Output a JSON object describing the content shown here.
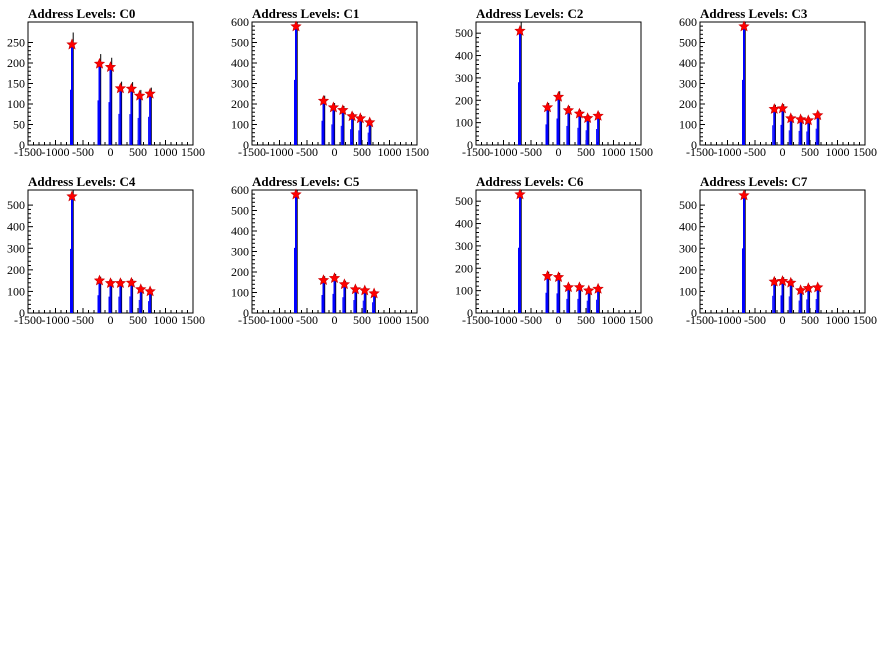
{
  "chart_data": [
    {
      "type": "histogram",
      "title": "Address Levels: C0",
      "xlim": [
        -1500,
        1500
      ],
      "ylim": [
        0,
        300
      ],
      "xticks": [
        -1500,
        -1000,
        -500,
        0,
        500,
        1000,
        1500
      ],
      "xtick_labels": [
        "-1500",
        "-1000",
        "-500",
        "0",
        "500",
        "1000",
        "1500"
      ],
      "yticks": [
        0,
        50,
        100,
        150,
        200,
        250
      ],
      "ytick_labels": [
        "0",
        "50",
        "100",
        "150",
        "200",
        "250"
      ],
      "peaks": [
        {
          "x": -700,
          "y": 245
        },
        {
          "x": -200,
          "y": 198
        },
        {
          "x": 0,
          "y": 190
        },
        {
          "x": 180,
          "y": 138
        },
        {
          "x": 380,
          "y": 137
        },
        {
          "x": 530,
          "y": 120
        },
        {
          "x": 720,
          "y": 125
        }
      ]
    },
    {
      "type": "histogram",
      "title": "Address Levels: C1",
      "xlim": [
        -1500,
        1500
      ],
      "ylim": [
        0,
        600
      ],
      "xticks": [
        -1500,
        -1000,
        -500,
        0,
        500,
        1000,
        1500
      ],
      "xtick_labels": [
        "-1500",
        "-1000",
        "-500",
        "0",
        "500",
        "1000",
        "1500"
      ],
      "yticks": [
        0,
        100,
        200,
        300,
        400,
        500,
        600
      ],
      "ytick_labels": [
        "0",
        "100",
        "200",
        "300",
        "400",
        "500",
        "600"
      ],
      "peaks": [
        {
          "x": -700,
          "y": 578
        },
        {
          "x": -200,
          "y": 215
        },
        {
          "x": -20,
          "y": 183
        },
        {
          "x": 150,
          "y": 170
        },
        {
          "x": 320,
          "y": 140
        },
        {
          "x": 470,
          "y": 130
        },
        {
          "x": 640,
          "y": 110
        }
      ]
    },
    {
      "type": "histogram",
      "title": "Address Levels: C2",
      "xlim": [
        -1500,
        1500
      ],
      "ylim": [
        0,
        550
      ],
      "xticks": [
        -1500,
        -1000,
        -500,
        0,
        500,
        1000,
        1500
      ],
      "xtick_labels": [
        "-1500",
        "-1000",
        "-500",
        "0",
        "500",
        "1000",
        "1500"
      ],
      "yticks": [
        0,
        100,
        200,
        300,
        400,
        500
      ],
      "ytick_labels": [
        "0",
        "100",
        "200",
        "300",
        "400",
        "500"
      ],
      "peaks": [
        {
          "x": -700,
          "y": 510
        },
        {
          "x": -200,
          "y": 168
        },
        {
          "x": 0,
          "y": 215
        },
        {
          "x": 180,
          "y": 155
        },
        {
          "x": 380,
          "y": 140
        },
        {
          "x": 530,
          "y": 120
        },
        {
          "x": 720,
          "y": 130
        }
      ]
    },
    {
      "type": "histogram",
      "title": "Address Levels: C3",
      "xlim": [
        -1500,
        1500
      ],
      "ylim": [
        0,
        600
      ],
      "xticks": [
        -1500,
        -1000,
        -500,
        0,
        500,
        1000,
        1500
      ],
      "xtick_labels": [
        "-1500",
        "-1000",
        "-500",
        "0",
        "500",
        "1000",
        "1500"
      ],
      "yticks": [
        0,
        100,
        200,
        300,
        400,
        500,
        600
      ],
      "ytick_labels": [
        "0",
        "100",
        "200",
        "300",
        "400",
        "500",
        "600"
      ],
      "peaks": [
        {
          "x": -700,
          "y": 578
        },
        {
          "x": -150,
          "y": 175
        },
        {
          "x": 0,
          "y": 178
        },
        {
          "x": 150,
          "y": 130
        },
        {
          "x": 330,
          "y": 125
        },
        {
          "x": 470,
          "y": 120
        },
        {
          "x": 640,
          "y": 145
        }
      ]
    },
    {
      "type": "histogram",
      "title": "Address Levels: C4",
      "xlim": [
        -1500,
        1500
      ],
      "ylim": [
        0,
        570
      ],
      "xticks": [
        -1500,
        -1000,
        -500,
        0,
        500,
        1000,
        1500
      ],
      "xtick_labels": [
        "-1500",
        "-1000",
        "-500",
        "0",
        "500",
        "1000",
        "1500"
      ],
      "yticks": [
        0,
        100,
        200,
        300,
        400,
        500
      ],
      "ytick_labels": [
        "0",
        "100",
        "200",
        "300",
        "400",
        "500"
      ],
      "peaks": [
        {
          "x": -700,
          "y": 540
        },
        {
          "x": -200,
          "y": 150
        },
        {
          "x": 0,
          "y": 138
        },
        {
          "x": 180,
          "y": 138
        },
        {
          "x": 380,
          "y": 140
        },
        {
          "x": 550,
          "y": 110
        },
        {
          "x": 720,
          "y": 100
        }
      ]
    },
    {
      "type": "histogram",
      "title": "Address Levels: C5",
      "xlim": [
        -1500,
        1500
      ],
      "ylim": [
        0,
        600
      ],
      "xticks": [
        -1500,
        -1000,
        -500,
        0,
        500,
        1000,
        1500
      ],
      "xtick_labels": [
        "-1500",
        "-1000",
        "-500",
        "0",
        "500",
        "1000",
        "1500"
      ],
      "yticks": [
        0,
        100,
        200,
        300,
        400,
        500,
        600
      ],
      "ytick_labels": [
        "0",
        "100",
        "200",
        "300",
        "400",
        "500",
        "600"
      ],
      "peaks": [
        {
          "x": -700,
          "y": 578
        },
        {
          "x": -200,
          "y": 160
        },
        {
          "x": 0,
          "y": 170
        },
        {
          "x": 180,
          "y": 140
        },
        {
          "x": 380,
          "y": 115
        },
        {
          "x": 550,
          "y": 110
        },
        {
          "x": 720,
          "y": 95
        }
      ]
    },
    {
      "type": "histogram",
      "title": "Address Levels: C6",
      "xlim": [
        -1500,
        1500
      ],
      "ylim": [
        0,
        550
      ],
      "xticks": [
        -1500,
        -1000,
        -500,
        0,
        500,
        1000,
        1500
      ],
      "xtick_labels": [
        "-1500",
        "-1000",
        "-500",
        "0",
        "500",
        "1000",
        "1500"
      ],
      "yticks": [
        0,
        100,
        200,
        300,
        400,
        500
      ],
      "ytick_labels": [
        "0",
        "100",
        "200",
        "300",
        "400",
        "500"
      ],
      "peaks": [
        {
          "x": -700,
          "y": 530
        },
        {
          "x": -200,
          "y": 165
        },
        {
          "x": 0,
          "y": 160
        },
        {
          "x": 180,
          "y": 115
        },
        {
          "x": 380,
          "y": 115
        },
        {
          "x": 550,
          "y": 100
        },
        {
          "x": 720,
          "y": 108
        }
      ]
    },
    {
      "type": "histogram",
      "title": "Address Levels: C7",
      "xlim": [
        -1500,
        1500
      ],
      "ylim": [
        0,
        570
      ],
      "xticks": [
        -1500,
        -1000,
        -500,
        0,
        500,
        1000,
        1500
      ],
      "xtick_labels": [
        "-1500",
        "-1000",
        "-500",
        "0",
        "500",
        "1000",
        "1500"
      ],
      "yticks": [
        0,
        100,
        200,
        300,
        400,
        500
      ],
      "ytick_labels": [
        "0",
        "100",
        "200",
        "300",
        "400",
        "500"
      ],
      "peaks": [
        {
          "x": -700,
          "y": 545
        },
        {
          "x": -150,
          "y": 145
        },
        {
          "x": 0,
          "y": 148
        },
        {
          "x": 150,
          "y": 140
        },
        {
          "x": 330,
          "y": 105
        },
        {
          "x": 470,
          "y": 115
        },
        {
          "x": 640,
          "y": 118
        }
      ]
    }
  ],
  "colors": {
    "histogram": "#0000ff",
    "overflow": "#000000",
    "marker": "#ff0000",
    "frame": "#000000"
  }
}
